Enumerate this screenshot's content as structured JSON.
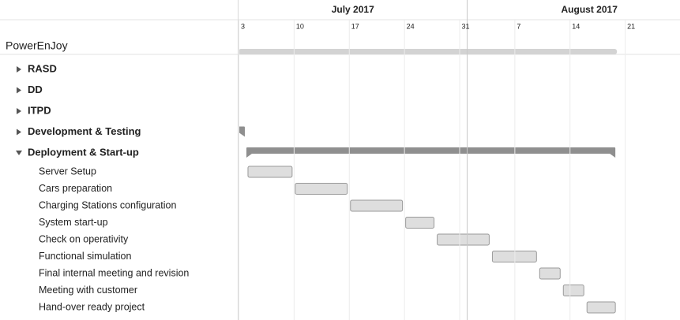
{
  "chart_data": {
    "type": "gantt",
    "xlim": [
      "2017-07-03",
      "2017-08-28"
    ],
    "months": [
      {
        "value": "2017-07-01",
        "label": "July 2017"
      },
      {
        "value": "2017-08-01",
        "label": "August 2017"
      }
    ],
    "xticks": [
      {
        "value": "2017-07-03",
        "label": "3"
      },
      {
        "value": "2017-07-10",
        "label": "10"
      },
      {
        "value": "2017-07-17",
        "label": "17"
      },
      {
        "value": "2017-07-24",
        "label": "24"
      },
      {
        "value": "2017-07-31",
        "label": "31"
      },
      {
        "value": "2017-08-07",
        "label": "7"
      },
      {
        "value": "2017-08-14",
        "label": "14"
      },
      {
        "value": "2017-08-21",
        "label": "21"
      }
    ],
    "project": {
      "name": "PowerEnJoy",
      "start": "2017-07-03",
      "end": "2017-08-20"
    },
    "groups": [
      {
        "name": "RASD",
        "expanded": false
      },
      {
        "name": "DD",
        "expanded": false
      },
      {
        "name": "ITPD",
        "expanded": false
      },
      {
        "name": "Development & Testing",
        "expanded": false,
        "start": "2017-06-26",
        "end": "2017-07-04"
      },
      {
        "name": "Deployment & Start-up",
        "expanded": true,
        "start": "2017-07-04",
        "end": "2017-08-20",
        "tasks": [
          {
            "name": "Server Setup",
            "start": "2017-07-04",
            "end": "2017-07-10"
          },
          {
            "name": "Cars preparation",
            "start": "2017-07-10",
            "end": "2017-07-17"
          },
          {
            "name": "Charging Stations configuration",
            "start": "2017-07-17",
            "end": "2017-07-24"
          },
          {
            "name": "System start-up",
            "start": "2017-07-24",
            "end": "2017-07-28"
          },
          {
            "name": "Check on operativity",
            "start": "2017-07-28",
            "end": "2017-08-04"
          },
          {
            "name": "Functional simulation",
            "start": "2017-08-04",
            "end": "2017-08-10"
          },
          {
            "name": "Final internal meeting and revision",
            "start": "2017-08-10",
            "end": "2017-08-13"
          },
          {
            "name": "Meeting with customer",
            "start": "2017-08-13",
            "end": "2017-08-16"
          },
          {
            "name": "Hand-over ready project",
            "start": "2017-08-16",
            "end": "2017-08-20"
          }
        ]
      }
    ]
  }
}
